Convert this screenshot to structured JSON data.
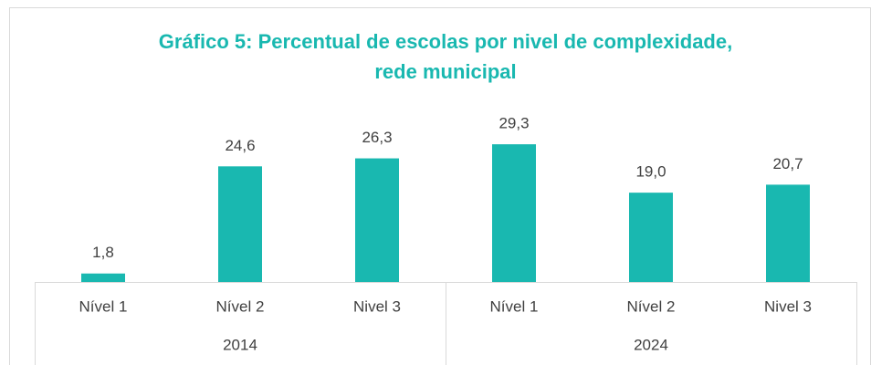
{
  "chart_data": {
    "type": "bar",
    "title": [
      "Gráfico 5: Percentual de escolas por nivel de complexidade,",
      "rede municipal"
    ],
    "categories": [
      "Nível 1",
      "Nível 2",
      "Nivel 3",
      "Nível 1",
      "Nível 2",
      "Nivel 3"
    ],
    "category_groups": [
      "2014",
      "2024"
    ],
    "values": [
      1.8,
      24.6,
      26.3,
      29.3,
      19.0,
      20.7
    ],
    "value_labels": [
      "1,8",
      "24,6",
      "26,3",
      "29,3",
      "19,0",
      "20,7"
    ],
    "color": "#19b8b0"
  }
}
